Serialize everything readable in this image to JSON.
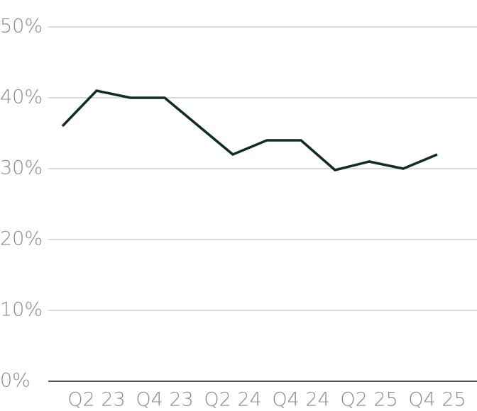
{
  "chart_data": {
    "type": "line",
    "categories": [
      null,
      "Q2 23",
      null,
      "Q4 23",
      null,
      "Q2 24",
      null,
      "Q4 24",
      null,
      "Q2 25",
      null,
      "Q4 25"
    ],
    "series": [
      {
        "name": null,
        "color": "#0f2e1f",
        "values": [
          36,
          41,
          40,
          40,
          36,
          32,
          34,
          34,
          29.8,
          31,
          30,
          32
        ]
      }
    ],
    "ylim": [
      0,
      50
    ],
    "yticks": [
      {
        "value": 0,
        "label": "0%"
      },
      {
        "value": 10,
        "label": "10%"
      },
      {
        "value": 20,
        "label": "20%"
      },
      {
        "value": 30,
        "label": "30%"
      },
      {
        "value": 40,
        "label": "40%"
      },
      {
        "value": 50,
        "label": "50%"
      }
    ],
    "grid": true
  }
}
